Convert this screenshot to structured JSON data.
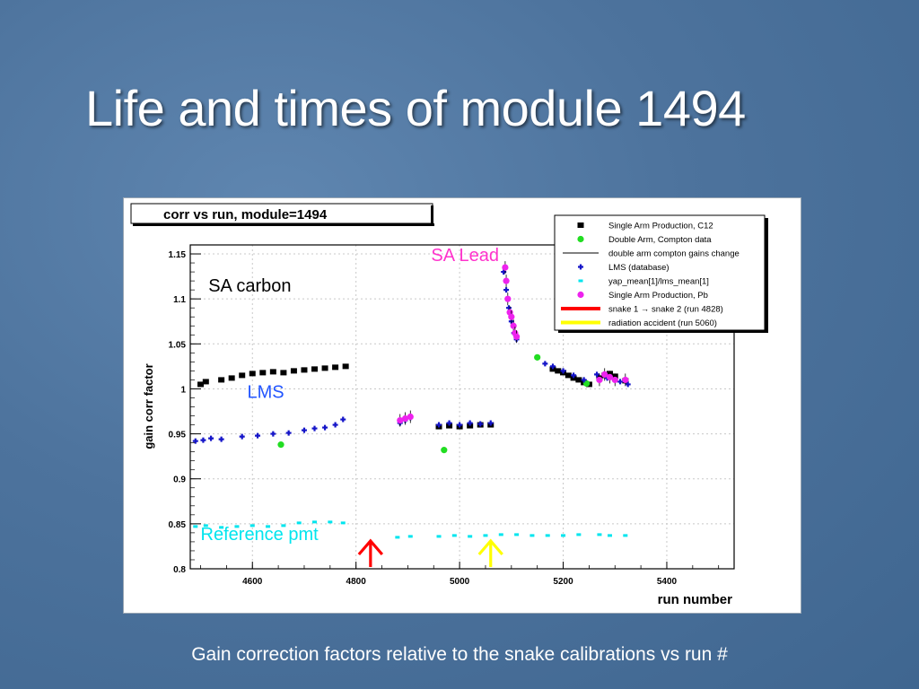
{
  "slide": {
    "title": "Life and times of module 1494",
    "caption": "Gain correction factors relative to the snake calibrations vs run #"
  },
  "colors": {
    "c12": "#000000",
    "compton": "#22dd22",
    "lms": "#1414c8",
    "yap": "#00e5ee",
    "pb": "#ee22ee",
    "snake": "#ff0000",
    "radiation": "#ffff00"
  },
  "chart_data": {
    "type": "scatter",
    "title": "corr vs run, module=1494",
    "xlabel": "run number",
    "ylabel": "gain corr factor",
    "xlim": [
      4480,
      5530
    ],
    "ylim": [
      0.8,
      1.16
    ],
    "xticks": [
      "4600",
      "4800",
      "5000",
      "5200",
      "5400"
    ],
    "yticks": [
      "0.8",
      "0.85",
      "0.9",
      "0.95",
      "1",
      "1.05",
      "1.1",
      "1.15"
    ],
    "grid": true,
    "legend_position": "top-right",
    "legend": [
      {
        "label": "Single Arm Production, C12",
        "marker": "square",
        "color": "#000000"
      },
      {
        "label": "Double Arm, Compton data",
        "marker": "circle",
        "color": "#22dd22"
      },
      {
        "label": "double arm compton gains change",
        "marker": "line",
        "color": "#000000"
      },
      {
        "label": "LMS (database)",
        "marker": "star",
        "color": "#1414c8"
      },
      {
        "label": "yap_mean[1]/lms_mean[1]",
        "marker": "small",
        "color": "#00e5ee"
      },
      {
        "label": "Single Arm Production, Pb",
        "marker": "circle",
        "color": "#ee22ee"
      },
      {
        "label": "snake 1 → snake 2 (run 4828)",
        "marker": "thickline",
        "color": "#ff0000"
      },
      {
        "label": "radiation accident (run 5060)",
        "marker": "thickline",
        "color": "#ffff00"
      }
    ],
    "annotations": [
      {
        "text": "SA Lead",
        "x": 4945,
        "y": 1.142,
        "color": "#ff33cc"
      },
      {
        "text": "SA carbon",
        "x": 4515,
        "y": 1.108,
        "color": "#000000"
      },
      {
        "text": "LMS",
        "x": 4590,
        "y": 0.99,
        "color": "#2255ff"
      },
      {
        "text": "Reference pmt",
        "x": 4500,
        "y": 0.832,
        "color": "#00e5ee"
      }
    ],
    "arrows": [
      {
        "name": "snake",
        "run": 4828,
        "color": "#ff0000"
      },
      {
        "name": "radiation",
        "run": 5060,
        "color": "#ffff00"
      }
    ],
    "series": [
      {
        "name": "Single Arm Production, C12",
        "marker": "square",
        "color": "#000000",
        "points": [
          [
            4500,
            1.005
          ],
          [
            4510,
            1.008
          ],
          [
            4540,
            1.01
          ],
          [
            4560,
            1.012
          ],
          [
            4580,
            1.015
          ],
          [
            4600,
            1.017
          ],
          [
            4620,
            1.018
          ],
          [
            4640,
            1.019
          ],
          [
            4660,
            1.018
          ],
          [
            4680,
            1.02
          ],
          [
            4700,
            1.021
          ],
          [
            4720,
            1.022
          ],
          [
            4740,
            1.023
          ],
          [
            4760,
            1.024
          ],
          [
            4780,
            1.025
          ],
          [
            4960,
            0.958
          ],
          [
            4980,
            0.959
          ],
          [
            5000,
            0.958
          ],
          [
            5020,
            0.959
          ],
          [
            5040,
            0.96
          ],
          [
            5060,
            0.96
          ],
          [
            5180,
            1.022
          ],
          [
            5190,
            1.02
          ],
          [
            5200,
            1.018
          ],
          [
            5210,
            1.015
          ],
          [
            5220,
            1.012
          ],
          [
            5230,
            1.01
          ],
          [
            5240,
            1.007
          ],
          [
            5250,
            1.005
          ],
          [
            5270,
            1.012
          ],
          [
            5280,
            1.015
          ],
          [
            5290,
            1.017
          ],
          [
            5300,
            1.014
          ],
          [
            5320,
            1.009
          ]
        ]
      },
      {
        "name": "Double Arm, Compton data",
        "marker": "circle",
        "color": "#22dd22",
        "points": [
          [
            4655,
            0.938
          ],
          [
            4970,
            0.932
          ],
          [
            5150,
            1.035
          ],
          [
            5245,
            1.006
          ]
        ]
      },
      {
        "name": "LMS (database)",
        "marker": "star",
        "color": "#1414c8",
        "points": [
          [
            4490,
            0.942
          ],
          [
            4505,
            0.943
          ],
          [
            4520,
            0.945
          ],
          [
            4540,
            0.944
          ],
          [
            4580,
            0.947
          ],
          [
            4610,
            0.948
          ],
          [
            4640,
            0.95
          ],
          [
            4670,
            0.951
          ],
          [
            4700,
            0.954
          ],
          [
            4720,
            0.956
          ],
          [
            4740,
            0.957
          ],
          [
            4760,
            0.96
          ],
          [
            4775,
            0.966
          ],
          [
            4885,
            0.962
          ],
          [
            4895,
            0.965
          ],
          [
            4905,
            0.968
          ],
          [
            4960,
            0.96
          ],
          [
            4980,
            0.962
          ],
          [
            5000,
            0.96
          ],
          [
            5020,
            0.962
          ],
          [
            5040,
            0.961
          ],
          [
            5060,
            0.962
          ],
          [
            5085,
            1.13
          ],
          [
            5090,
            1.11
          ],
          [
            5095,
            1.09
          ],
          [
            5100,
            1.075
          ],
          [
            5105,
            1.062
          ],
          [
            5110,
            1.055
          ],
          [
            5165,
            1.028
          ],
          [
            5180,
            1.025
          ],
          [
            5200,
            1.02
          ],
          [
            5220,
            1.015
          ],
          [
            5240,
            1.01
          ],
          [
            5265,
            1.016
          ],
          [
            5285,
            1.012
          ],
          [
            5310,
            1.008
          ],
          [
            5325,
            1.005
          ]
        ]
      },
      {
        "name": "yap_mean[1]/lms_mean[1]",
        "marker": "small",
        "color": "#00e5ee",
        "points": [
          [
            4490,
            0.847
          ],
          [
            4510,
            0.848
          ],
          [
            4540,
            0.846
          ],
          [
            4570,
            0.847
          ],
          [
            4600,
            0.848
          ],
          [
            4630,
            0.847
          ],
          [
            4660,
            0.848
          ],
          [
            4690,
            0.851
          ],
          [
            4720,
            0.852
          ],
          [
            4750,
            0.852
          ],
          [
            4775,
            0.851
          ],
          [
            4880,
            0.835
          ],
          [
            4905,
            0.836
          ],
          [
            4960,
            0.836
          ],
          [
            4990,
            0.837
          ],
          [
            5020,
            0.836
          ],
          [
            5050,
            0.837
          ],
          [
            5080,
            0.838
          ],
          [
            5110,
            0.838
          ],
          [
            5140,
            0.837
          ],
          [
            5170,
            0.837
          ],
          [
            5200,
            0.837
          ],
          [
            5230,
            0.838
          ],
          [
            5270,
            0.838
          ],
          [
            5290,
            0.837
          ],
          [
            5320,
            0.837
          ]
        ]
      },
      {
        "name": "Single Arm Production, Pb",
        "marker": "circle",
        "color": "#ee22ee",
        "points": [
          [
            4885,
            0.965
          ],
          [
            4895,
            0.967
          ],
          [
            4905,
            0.969
          ],
          [
            5088,
            1.135
          ],
          [
            5090,
            1.12
          ],
          [
            5093,
            1.1
          ],
          [
            5097,
            1.085
          ],
          [
            5100,
            1.08
          ],
          [
            5104,
            1.07
          ],
          [
            5107,
            1.062
          ],
          [
            5110,
            1.058
          ],
          [
            5270,
            1.01
          ],
          [
            5280,
            1.016
          ],
          [
            5290,
            1.013
          ],
          [
            5300,
            1.01
          ],
          [
            5320,
            1.01
          ]
        ]
      }
    ]
  }
}
